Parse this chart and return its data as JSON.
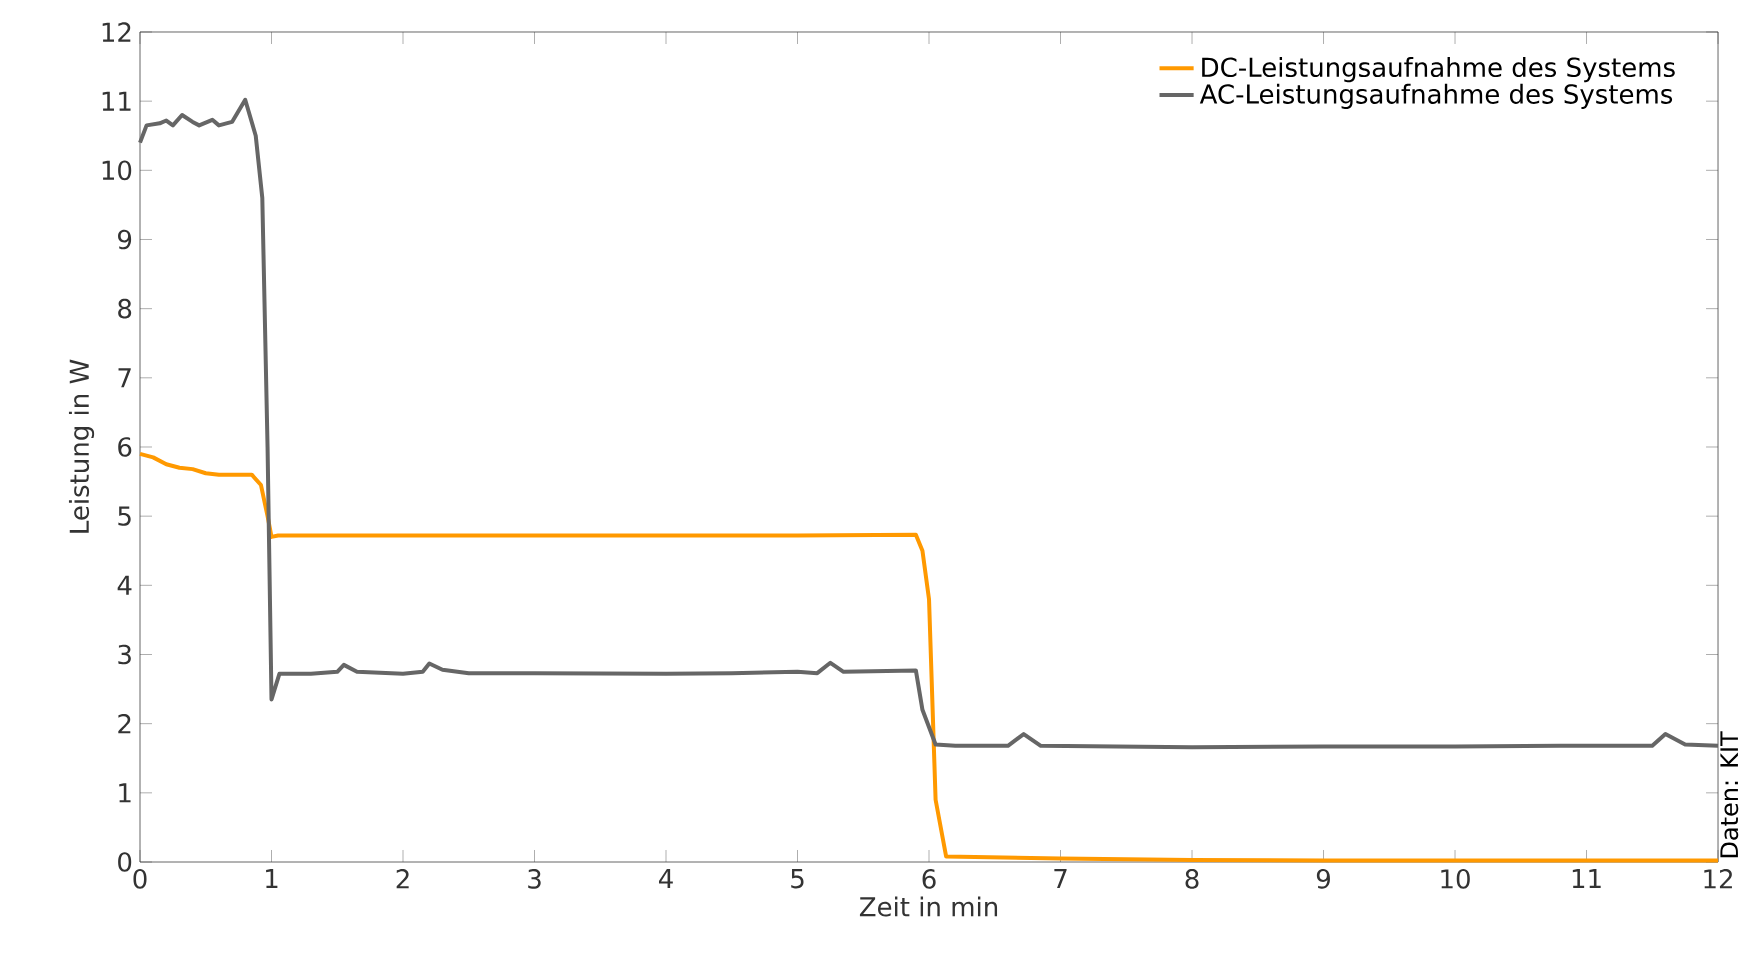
{
  "chart_data": {
    "type": "line",
    "xlabel": "Zeit in min",
    "ylabel": "Leistung in W",
    "xlim": [
      0,
      12
    ],
    "ylim": [
      0,
      12
    ],
    "xticks": [
      0,
      1,
      2,
      3,
      4,
      5,
      6,
      7,
      8,
      9,
      10,
      11,
      12
    ],
    "yticks": [
      0,
      1,
      2,
      3,
      4,
      5,
      6,
      7,
      8,
      9,
      10,
      11,
      12
    ],
    "grid": false,
    "legend": "top right",
    "marker": "none",
    "line_style": "solid",
    "annotations": [
      "Daten: KIT"
    ],
    "series": [
      {
        "name": "DC-Leistungsaufnahme des Systems",
        "color": "#ff9900",
        "x": [
          0,
          0.1,
          0.2,
          0.3,
          0.4,
          0.5,
          0.6,
          0.7,
          0.85,
          0.92,
          0.97,
          1.0,
          1.05,
          2,
          3,
          4,
          5,
          5.9,
          5.95,
          6.0,
          6.05,
          6.13,
          7,
          8,
          9,
          12
        ],
        "values": [
          5.9,
          5.85,
          5.75,
          5.7,
          5.68,
          5.62,
          5.6,
          5.6,
          5.6,
          5.45,
          5.0,
          4.7,
          4.72,
          4.72,
          4.72,
          4.72,
          4.72,
          4.73,
          4.5,
          3.8,
          0.9,
          0.08,
          0.05,
          0.03,
          0.02,
          0.02
        ]
      },
      {
        "name": "AC-Leistungsaufnahme des Systems",
        "color": "#666666",
        "x": [
          0,
          0.05,
          0.15,
          0.2,
          0.25,
          0.32,
          0.4,
          0.45,
          0.55,
          0.6,
          0.7,
          0.8,
          0.88,
          0.93,
          0.97,
          1.0,
          1.06,
          1.3,
          1.5,
          1.55,
          1.65,
          2.0,
          2.15,
          2.2,
          2.3,
          2.5,
          3,
          4,
          4.5,
          5.0,
          5.15,
          5.25,
          5.35,
          5.9,
          5.95,
          6.05,
          6.2,
          6.6,
          6.72,
          6.85,
          8,
          9,
          10,
          10.8,
          11.5,
          11.6,
          11.75,
          12
        ],
        "values": [
          10.4,
          10.65,
          10.68,
          10.72,
          10.65,
          10.8,
          10.7,
          10.65,
          10.73,
          10.65,
          10.7,
          11.02,
          10.5,
          9.6,
          6.0,
          2.35,
          2.72,
          2.72,
          2.75,
          2.85,
          2.75,
          2.72,
          2.75,
          2.87,
          2.78,
          2.73,
          2.73,
          2.72,
          2.73,
          2.75,
          2.73,
          2.88,
          2.75,
          2.77,
          2.2,
          1.7,
          1.68,
          1.68,
          1.85,
          1.68,
          1.66,
          1.67,
          1.67,
          1.68,
          1.68,
          1.85,
          1.7,
          1.68
        ]
      }
    ]
  }
}
